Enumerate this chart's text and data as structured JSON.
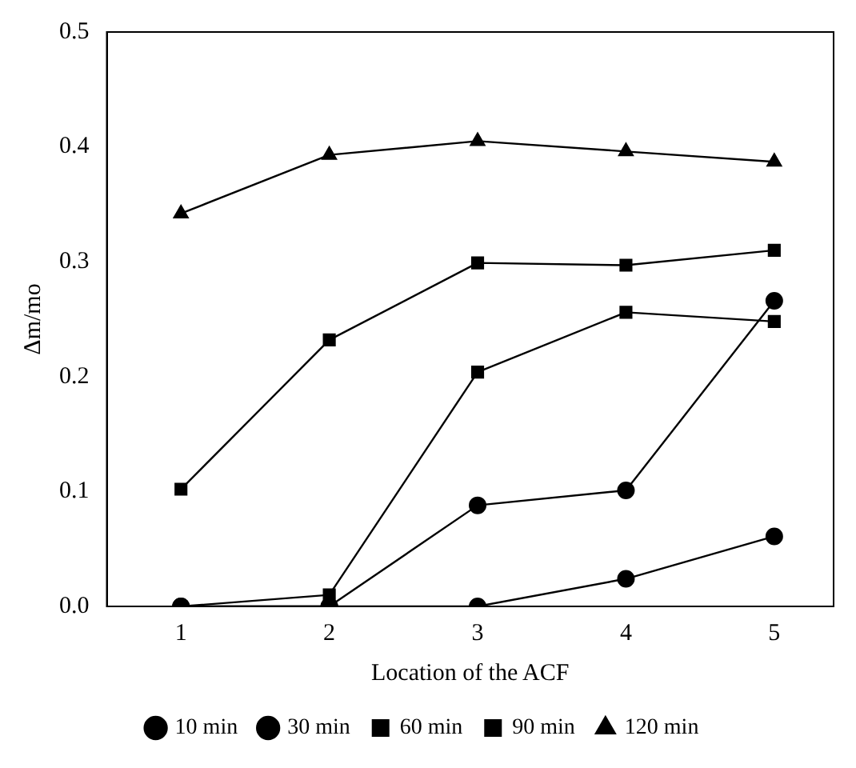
{
  "chart_data": {
    "type": "line",
    "xlabel": "Location of the ACF",
    "ylabel": "Δm/mo",
    "x": [
      1,
      2,
      3,
      4,
      5
    ],
    "xlim": [
      0.5,
      5.4
    ],
    "xticks": [
      1,
      2,
      3,
      4,
      5
    ],
    "ylim": [
      0,
      0.5
    ],
    "yticks": [
      {
        "value": 0,
        "label": "0.0"
      },
      0.1,
      0.2,
      0.3,
      0.4,
      0.5
    ],
    "grid": false,
    "legend": "bottom",
    "line_style": "solid",
    "series": [
      {
        "name": "10 min",
        "color": "#000000",
        "marker": "circle",
        "values": [
          0,
          0,
          0,
          0.024,
          0.061
        ]
      },
      {
        "name": "30 min",
        "color": "#000000",
        "marker": "circle",
        "values": [
          0,
          0,
          0.088,
          0.101,
          0.266
        ]
      },
      {
        "name": "60 min",
        "color": "#000000",
        "marker": "square",
        "values": [
          0,
          0.01,
          0.204,
          0.256,
          0.248
        ]
      },
      {
        "name": "90 min",
        "color": "#000000",
        "marker": "square",
        "values": [
          0.102,
          0.232,
          0.299,
          0.297,
          0.31
        ]
      },
      {
        "name": "120 min",
        "color": "#000000",
        "marker": "triangle",
        "values": [
          0.342,
          0.393,
          0.405,
          0.396,
          0.387
        ]
      }
    ]
  }
}
